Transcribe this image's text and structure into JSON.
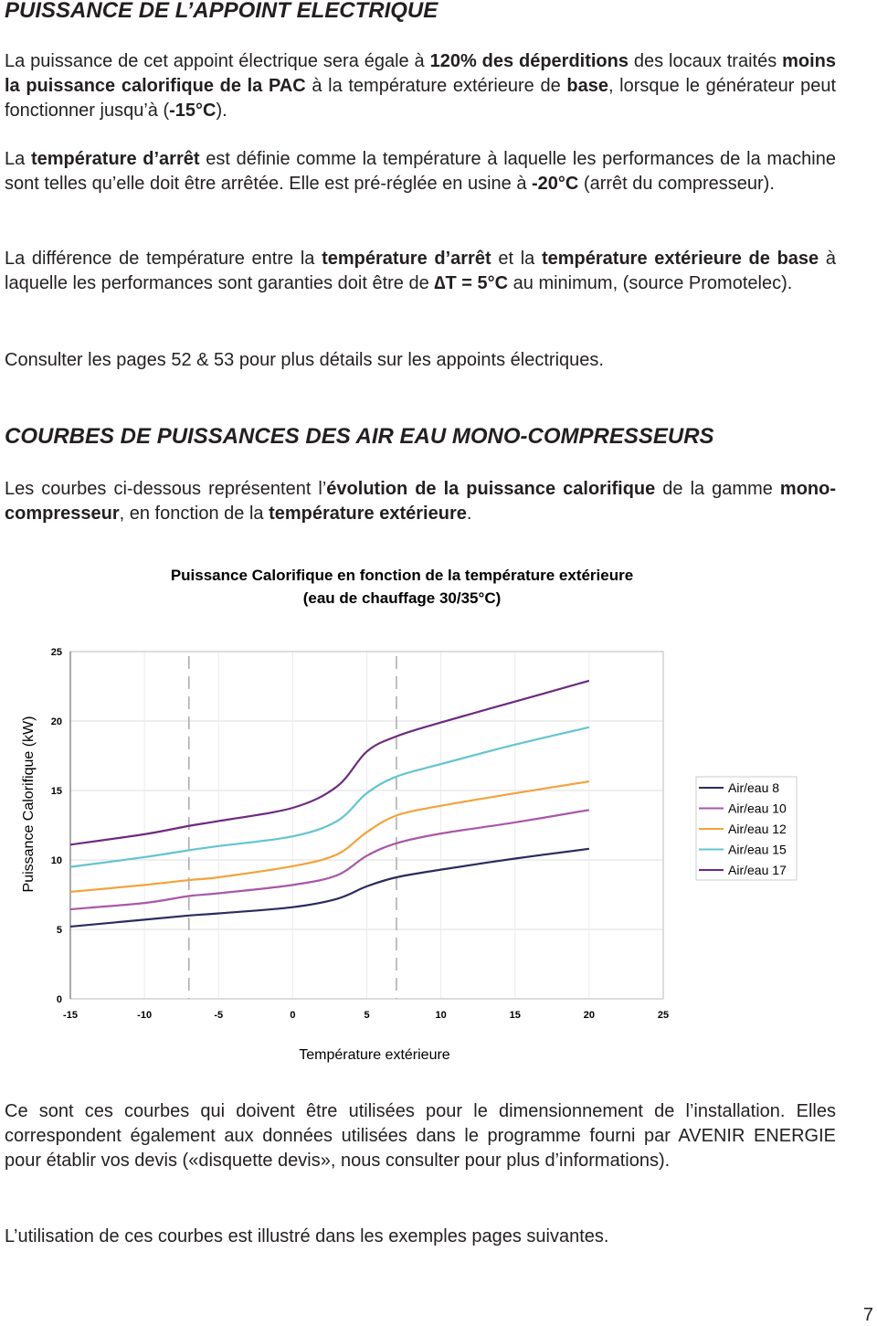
{
  "section1": {
    "title": "PUISSANCE DE L’APPOINT ELECTRIQUE",
    "paragraphs": [
      [
        {
          "text": "La puissance de cet appoint électrique sera égale à ",
          "bold": false
        },
        {
          "text": "120% des déperditions",
          "bold": true
        },
        {
          "text": " des locaux traités ",
          "bold": false
        },
        {
          "text": "moins la puissance calorifique de la PAC",
          "bold": true
        },
        {
          "text": " à la température extérieure de ",
          "bold": false
        },
        {
          "text": "base",
          "bold": true
        },
        {
          "text": ", lorsque le générateur peut fonctionner jusqu’à (",
          "bold": false
        },
        {
          "text": "-15°C",
          "bold": true
        },
        {
          "text": ").",
          "bold": false
        }
      ],
      [
        {
          "text": "La ",
          "bold": false
        },
        {
          "text": "température d’arrêt",
          "bold": true
        },
        {
          "text": " est définie comme la température à laquelle les performances de la machine sont telles qu’elle doit être arrêtée. Elle est pré-réglée en usine à ",
          "bold": false
        },
        {
          "text": "-20°C",
          "bold": true
        },
        {
          "text": " (arrêt du compresseur).",
          "bold": false
        }
      ],
      [
        {
          "text": "La différence de température entre la ",
          "bold": false
        },
        {
          "text": "température d’arrêt",
          "bold": true
        },
        {
          "text": " et la ",
          "bold": false
        },
        {
          "text": "température extérieure de base",
          "bold": true
        },
        {
          "text": " à laquelle les performances sont garanties doit être de ",
          "bold": false
        },
        {
          "text": "∆T = 5°C",
          "bold": true
        },
        {
          "text": " au minimum, (source Promotelec).",
          "bold": false
        }
      ],
      [
        {
          "text": "Consulter les pages 52 & 53 pour plus détails sur les appoints électriques.",
          "bold": false
        }
      ]
    ]
  },
  "section2": {
    "title": "COURBES DE PUISSANCES DES AIR EAU MONO-COMPRESSEURS",
    "paragraphs": [
      [
        {
          "text": "Les courbes ci-dessous représentent l’",
          "bold": false
        },
        {
          "text": "évolution de la puissance calorifique",
          "bold": true
        },
        {
          "text": " de la gamme ",
          "bold": false
        },
        {
          "text": "mono-compresseur",
          "bold": true
        },
        {
          "text": ", en fonction de la ",
          "bold": false
        },
        {
          "text": "température extérieure",
          "bold": true
        },
        {
          "text": ".",
          "bold": false
        }
      ]
    ]
  },
  "chart_data": {
    "type": "line",
    "title": [
      "Puissance Calorifique en fonction de la température extérieure",
      "(eau de chauffage 30/35°C)"
    ],
    "y_label": "Puissance Calorifique (kW)",
    "x_label": "Température extérieure",
    "x": [
      -15,
      -10,
      -7,
      -5,
      0,
      3,
      5,
      7,
      10,
      15,
      20
    ],
    "series": [
      {
        "name": "Air/eau 8",
        "color": "#2b2b5e",
        "values": [
          5.2,
          5.7,
          6.0,
          6.15,
          6.6,
          7.2,
          8.1,
          8.75,
          9.3,
          10.1,
          10.8
        ]
      },
      {
        "name": "Air/eau 10",
        "color": "#a857a8",
        "values": [
          6.45,
          6.9,
          7.4,
          7.6,
          8.2,
          8.9,
          10.3,
          11.2,
          11.9,
          12.7,
          13.6
        ]
      },
      {
        "name": "Air/eau 12",
        "color": "#f2a33a",
        "values": [
          7.7,
          8.2,
          8.55,
          8.75,
          9.55,
          10.4,
          12.0,
          13.2,
          13.9,
          14.8,
          15.65
        ]
      },
      {
        "name": "Air/eau 15",
        "color": "#62c5d0",
        "values": [
          9.5,
          10.2,
          10.7,
          11.0,
          11.7,
          12.8,
          14.8,
          16.0,
          16.9,
          18.3,
          19.55
        ]
      },
      {
        "name": "Air/eau 17",
        "color": "#6d2a7f",
        "values": [
          11.1,
          11.85,
          12.45,
          12.8,
          13.75,
          15.3,
          17.8,
          18.9,
          19.9,
          21.4,
          22.9
        ]
      }
    ],
    "xlim": [
      -15,
      25
    ],
    "xticks": [
      -15,
      -10,
      -5,
      0,
      5,
      10,
      15,
      20,
      25
    ],
    "ylim": [
      0,
      25
    ],
    "yticks": [
      0,
      5,
      10,
      15,
      20,
      25
    ],
    "vlines": [
      -7,
      7
    ],
    "grid": true,
    "legend": "right"
  },
  "closing_paragraphs": [
    [
      {
        "text": "Ce sont ces courbes qui doivent être utilisées pour le dimensionnement de l’installation. Elles correspondent également aux données utilisées dans le programme fourni par AVENIR ENERGIE pour établir vos  devis («disquette devis», nous consulter pour plus d’informations).",
        "bold": false
      }
    ],
    [
      {
        "text": "L’utilisation de ces courbes est illustré dans les exemples pages suivantes.",
        "bold": false
      }
    ]
  ],
  "page_number": 7
}
